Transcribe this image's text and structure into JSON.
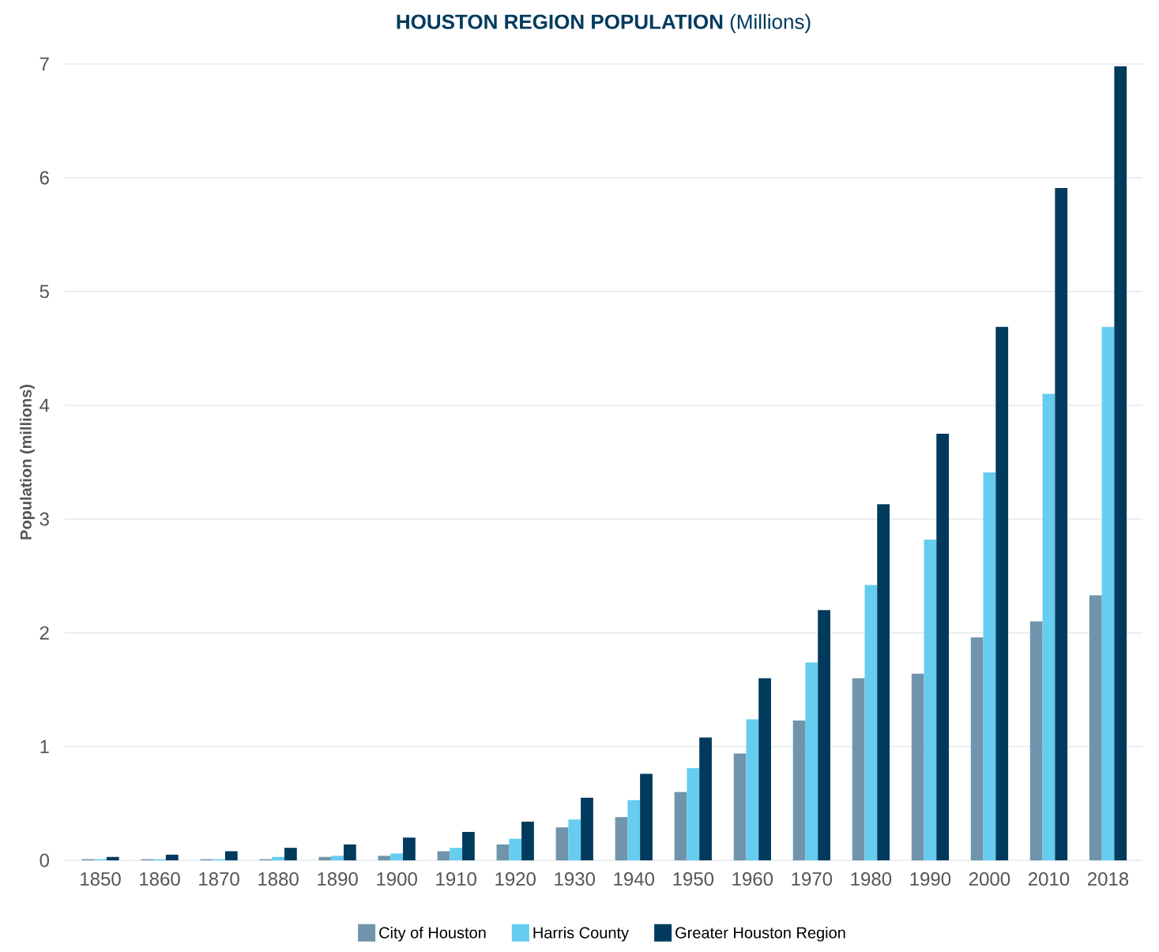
{
  "chart_data": {
    "type": "bar",
    "title": "**HOUSTON REGION POPULATION** (Millions)",
    "ylabel": "Population (millions)",
    "categories": [
      "1850",
      "1860",
      "1870",
      "1880",
      "1890",
      "1900",
      "1910",
      "1920",
      "1930",
      "1940",
      "1950",
      "1960",
      "1970",
      "1980",
      "1990",
      "2000",
      "2010",
      "2018"
    ],
    "series": [
      {
        "name": "City of Houston",
        "color": "#7094ab",
        "values": [
          0.01,
          0.01,
          0.01,
          0.01,
          0.03,
          0.04,
          0.08,
          0.14,
          0.29,
          0.38,
          0.6,
          0.94,
          1.23,
          1.6,
          1.64,
          1.96,
          2.1,
          2.33
        ]
      },
      {
        "name": "Harris County",
        "color": "#66ccf0",
        "values": [
          0.01,
          0.01,
          0.01,
          0.03,
          0.04,
          0.06,
          0.11,
          0.19,
          0.36,
          0.53,
          0.81,
          1.24,
          1.74,
          2.42,
          2.82,
          3.41,
          4.1,
          4.69
        ]
      },
      {
        "name": "Greater Houston Region",
        "color": "#003a5d",
        "values": [
          0.03,
          0.05,
          0.08,
          0.11,
          0.14,
          0.2,
          0.25,
          0.34,
          0.55,
          0.76,
          1.08,
          1.6,
          2.2,
          3.13,
          3.75,
          4.69,
          5.91,
          6.98
        ]
      }
    ],
    "ylim": [
      0,
      7
    ],
    "yticks": [
      0,
      1,
      2,
      3,
      4,
      5,
      6,
      7
    ],
    "grid": "y",
    "legend": "bottom"
  }
}
